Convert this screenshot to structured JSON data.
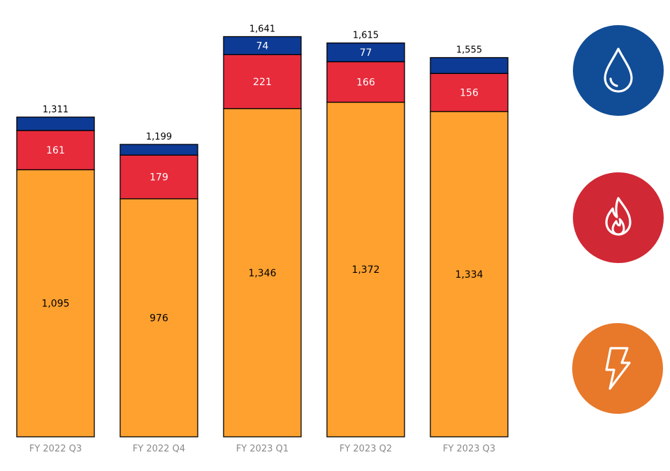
{
  "chart_data": {
    "type": "bar",
    "stacked": true,
    "categories": [
      "FY 2022 Q3",
      "FY 2022 Q4",
      "FY 2023 Q1",
      "FY 2023 Q2",
      "FY 2023 Q3"
    ],
    "totals": [
      1311,
      1199,
      1641,
      1615,
      1555
    ],
    "total_labels": [
      "1,311",
      "1,199",
      "1,641",
      "1,615",
      "1,555"
    ],
    "series": [
      {
        "key": "electric",
        "color": "#ffa12f",
        "label_color": "#000000",
        "values": [
          1095,
          976,
          1346,
          1372,
          1334
        ],
        "labels": [
          "1,095",
          "976",
          "1,346",
          "1,372",
          "1,334"
        ]
      },
      {
        "key": "gas",
        "color": "#e72b3b",
        "label_color": "#ffffff",
        "values": [
          161,
          179,
          221,
          166,
          156
        ],
        "labels": [
          "161",
          "179",
          "221",
          "166",
          "156"
        ]
      },
      {
        "key": "water",
        "color": "#0d3a94",
        "label_color": "#ffffff",
        "values": [
          55,
          44,
          74,
          77,
          65
        ],
        "labels": [
          "",
          "",
          "74",
          "77",
          ""
        ]
      }
    ],
    "ylim": [
      0,
      1650
    ],
    "grid": false,
    "legend": "right"
  },
  "legend_icons": [
    {
      "name": "water-drop-icon",
      "color": "#114d96"
    },
    {
      "name": "flame-icon",
      "color": "#d02834"
    },
    {
      "name": "lightning-bolt-icon",
      "color": "#e8782a"
    }
  ]
}
